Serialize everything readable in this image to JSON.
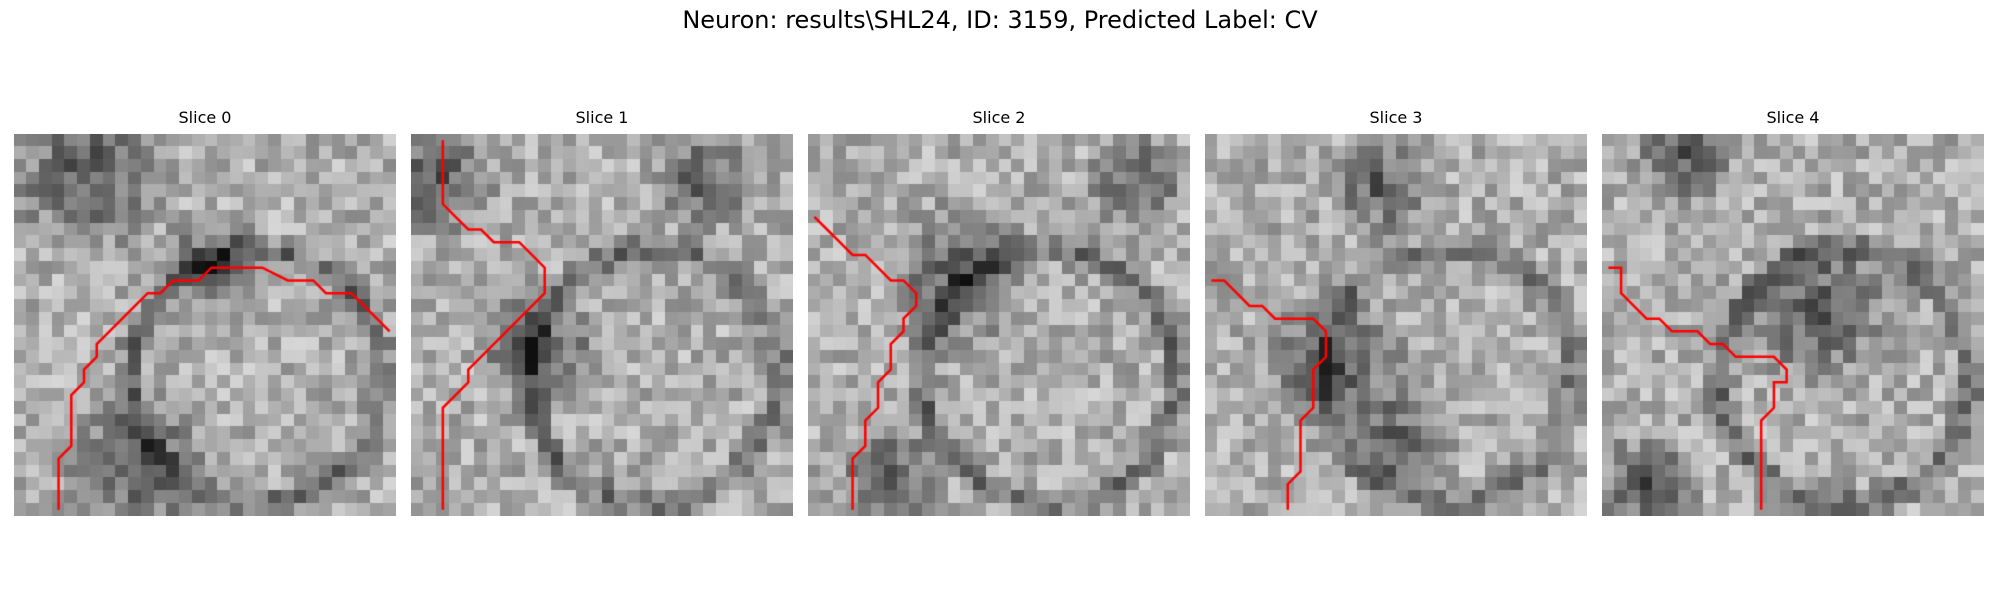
{
  "figure": {
    "title": "Neuron: results\\SHL24, ID: 3159, Predicted Label: CV"
  },
  "image": {
    "grid_size": 30,
    "trace_color": "#ff0000"
  },
  "slices": [
    {
      "label": "Slice 0",
      "seed": 11,
      "dark": [
        [
          0.18,
          0.08,
          0.16
        ],
        [
          0.5,
          0.33,
          0.1
        ],
        [
          0.3,
          0.85,
          0.15
        ]
      ],
      "trace": [
        [
          3,
          29
        ],
        [
          3,
          25
        ],
        [
          4,
          24
        ],
        [
          4,
          21
        ],
        [
          4,
          20
        ],
        [
          5,
          19
        ],
        [
          5,
          18
        ],
        [
          6,
          17
        ],
        [
          6,
          16
        ],
        [
          7,
          15
        ],
        [
          8,
          14
        ],
        [
          9,
          13
        ],
        [
          10,
          12
        ],
        [
          11,
          12
        ],
        [
          12,
          11
        ],
        [
          14,
          11
        ],
        [
          15,
          10
        ],
        [
          17,
          10
        ],
        [
          18,
          10
        ],
        [
          19,
          10
        ],
        [
          21,
          11
        ],
        [
          23,
          11
        ],
        [
          24,
          12
        ],
        [
          26,
          12
        ],
        [
          27,
          13
        ],
        [
          28,
          14
        ],
        [
          29,
          15
        ]
      ]
    },
    {
      "label": "Slice 1",
      "seed": 23,
      "dark": [
        [
          0.32,
          0.55,
          0.12
        ],
        [
          0.05,
          0.1,
          0.12
        ],
        [
          0.75,
          0.1,
          0.1
        ]
      ],
      "trace": [
        [
          2,
          29
        ],
        [
          2,
          21
        ],
        [
          3,
          20
        ],
        [
          4,
          19
        ],
        [
          4,
          18
        ],
        [
          5,
          17
        ],
        [
          6,
          16
        ],
        [
          7,
          15
        ],
        [
          8,
          14
        ],
        [
          9,
          13
        ],
        [
          10,
          12
        ],
        [
          10,
          10
        ],
        [
          9,
          9
        ],
        [
          8,
          8
        ],
        [
          6,
          8
        ],
        [
          5,
          7
        ],
        [
          4,
          7
        ],
        [
          3,
          6
        ],
        [
          2,
          5
        ],
        [
          2,
          0
        ]
      ]
    },
    {
      "label": "Slice 2",
      "seed": 37,
      "dark": [
        [
          0.38,
          0.35,
          0.14
        ],
        [
          0.2,
          0.88,
          0.1
        ],
        [
          0.85,
          0.1,
          0.1
        ]
      ],
      "trace": [
        [
          3,
          29
        ],
        [
          3,
          25
        ],
        [
          4,
          24
        ],
        [
          4,
          22
        ],
        [
          5,
          21
        ],
        [
          5,
          19
        ],
        [
          6,
          18
        ],
        [
          6,
          16
        ],
        [
          7,
          15
        ],
        [
          7,
          14
        ],
        [
          8,
          13
        ],
        [
          8,
          12
        ],
        [
          7,
          11
        ],
        [
          6,
          11
        ],
        [
          5,
          10
        ],
        [
          4,
          9
        ],
        [
          3,
          9
        ],
        [
          2,
          8
        ],
        [
          1,
          7
        ],
        [
          0,
          6
        ]
      ]
    },
    {
      "label": "Slice 3",
      "seed": 51,
      "dark": [
        [
          0.33,
          0.6,
          0.14
        ],
        [
          0.5,
          0.8,
          0.1
        ],
        [
          0.45,
          0.12,
          0.1
        ]
      ],
      "trace": [
        [
          6,
          29
        ],
        [
          6,
          27
        ],
        [
          7,
          26
        ],
        [
          7,
          22
        ],
        [
          8,
          21
        ],
        [
          8,
          18
        ],
        [
          9,
          17
        ],
        [
          9,
          15
        ],
        [
          8,
          14
        ],
        [
          7,
          14
        ],
        [
          6,
          14
        ],
        [
          5,
          14
        ],
        [
          4,
          13
        ],
        [
          3,
          13
        ],
        [
          2,
          12
        ],
        [
          1,
          11
        ],
        [
          0,
          11
        ]
      ]
    },
    {
      "label": "Slice 4",
      "seed": 67,
      "dark": [
        [
          0.55,
          0.45,
          0.14
        ],
        [
          0.1,
          0.9,
          0.1
        ],
        [
          0.2,
          0.05,
          0.1
        ]
      ],
      "trace": [
        [
          12,
          29
        ],
        [
          12,
          22
        ],
        [
          13,
          21
        ],
        [
          13,
          19
        ],
        [
          14,
          19
        ],
        [
          14,
          18
        ],
        [
          13,
          17
        ],
        [
          12,
          17
        ],
        [
          10,
          17
        ],
        [
          9,
          16
        ],
        [
          8,
          16
        ],
        [
          7,
          15
        ],
        [
          6,
          15
        ],
        [
          5,
          15
        ],
        [
          4,
          14
        ],
        [
          3,
          14
        ],
        [
          2,
          13
        ],
        [
          1,
          12
        ],
        [
          1,
          10
        ],
        [
          0,
          10
        ]
      ]
    }
  ]
}
